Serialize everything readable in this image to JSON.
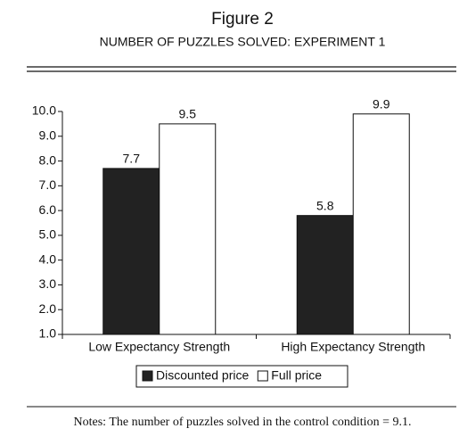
{
  "chart_data": {
    "type": "bar",
    "title": "Figure 2",
    "subtitle": "NUMBER OF PUZZLES SOLVED: EXPERIMENT 1",
    "categories": [
      "Low Expectancy Strength",
      "High Expectancy Strength"
    ],
    "series": [
      {
        "name": "Discounted price",
        "color": "#222222",
        "values": [
          7.7,
          5.8
        ]
      },
      {
        "name": "Full price",
        "color": "#ffffff",
        "values": [
          9.5,
          9.9
        ]
      }
    ],
    "ylim": [
      1,
      10
    ],
    "yticks": [
      {
        "value": 1,
        "label": "1.0"
      },
      {
        "value": 2,
        "label": "2.0"
      },
      {
        "value": 3,
        "label": "3.0"
      },
      {
        "value": 4,
        "label": "4.0"
      },
      {
        "value": 5,
        "label": "5.0"
      },
      {
        "value": 6,
        "label": "6.0"
      },
      {
        "value": 7,
        "label": "7.0"
      },
      {
        "value": 8,
        "label": "8.0"
      },
      {
        "value": 9,
        "label": "9.0"
      },
      {
        "value": 10,
        "label": "10.0"
      }
    ],
    "legend": "bottom",
    "note": "Notes: The number of puzzles solved in the control condition = 9.1."
  }
}
